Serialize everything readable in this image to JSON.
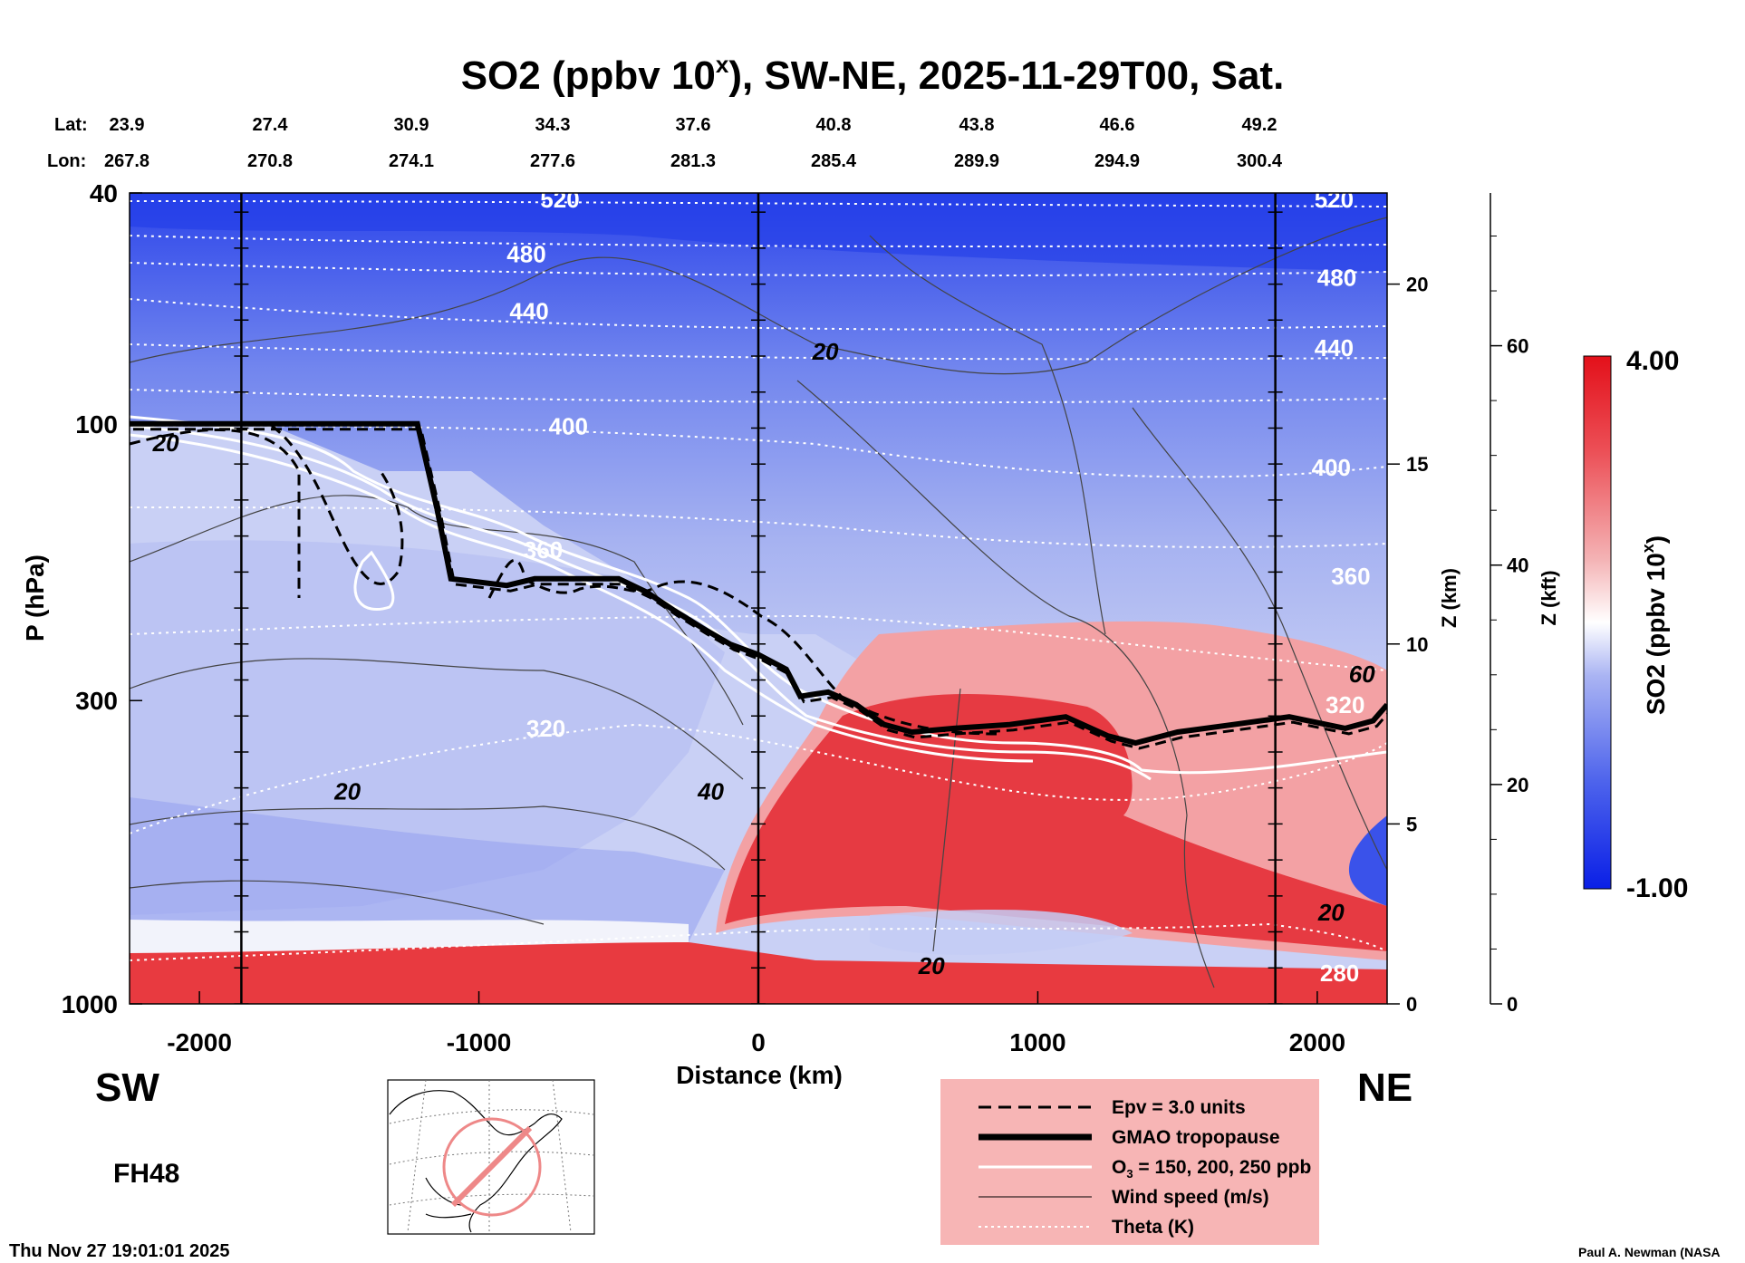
{
  "chart_data": {
    "type": "heatmap",
    "title_main": "SO2 (ppbv 10",
    "title_sup": "x",
    "title_rest": "), SW-NE, 2025-11-29T00, Sat.",
    "lat_label": "Lat:",
    "lon_label": "Lon:",
    "lat_values": [
      "23.9",
      "27.4",
      "30.9",
      "34.3",
      "37.6",
      "40.8",
      "43.8",
      "46.6",
      "49.2"
    ],
    "lon_values": [
      "267.8",
      "270.8",
      "274.1",
      "277.6",
      "281.3",
      "285.4",
      "289.9",
      "294.9",
      "300.4"
    ],
    "xlabel": "Distance (km)",
    "xlim": [
      -2250,
      2250
    ],
    "x_ticks": [
      -2000,
      -1000,
      0,
      1000,
      2000
    ],
    "x_tick_labels": [
      "-2000",
      "-1000",
      "0",
      "1000",
      "2000"
    ],
    "ylabel": "P (hPa)",
    "ylim": [
      1000,
      40
    ],
    "y_ticks": [
      40,
      100,
      300,
      1000
    ],
    "y_tick_labels": [
      "40",
      "100",
      "300",
      "1000"
    ],
    "z_km_label": "Z (km)",
    "z_km_ticks": [
      0,
      5,
      10,
      15,
      20
    ],
    "z_km_tick_labels": [
      "0",
      "5",
      "10",
      "15",
      "20"
    ],
    "z_kft_label": "Z (kft)",
    "z_kft_ticks": [
      0,
      20,
      40,
      60
    ],
    "z_kft_tick_labels": [
      "0",
      "20",
      "40",
      "60"
    ],
    "vertical_markers_km": [
      -1850,
      0,
      1850
    ],
    "colorbar": {
      "label_main": "SO2 (ppbv 10",
      "label_sup": "x",
      "label_rest": ")",
      "max_label": "4.00",
      "min_label": "-1.00",
      "min": -1.0,
      "max": 4.0,
      "colors": [
        "#0a1fe6",
        "#ffffff",
        "#e8101a"
      ]
    },
    "tropopause": {
      "x": [
        -2250,
        -2000,
        -1500,
        -1220,
        -1150,
        -1100,
        -900,
        -800,
        -600,
        -500,
        -400,
        -300,
        -200,
        -100,
        0,
        100,
        150,
        250,
        350,
        450,
        550,
        700,
        900,
        1100,
        1250,
        1350,
        1500,
        1700,
        1900,
        2100,
        2200,
        2250
      ],
      "p": [
        100,
        100,
        100,
        100,
        140,
        185,
        190,
        185,
        185,
        185,
        195,
        210,
        225,
        240,
        250,
        265,
        295,
        290,
        305,
        330,
        340,
        335,
        330,
        320,
        345,
        355,
        340,
        330,
        320,
        335,
        325,
        305
      ]
    },
    "theta_labels": [
      {
        "text": "520",
        "x": -710,
        "p": 41
      },
      {
        "text": "480",
        "x": -830,
        "p": 51
      },
      {
        "text": "440",
        "x": -820,
        "p": 64
      },
      {
        "text": "400",
        "x": -680,
        "p": 101
      },
      {
        "text": "360",
        "x": -770,
        "p": 165
      },
      {
        "text": "320",
        "x": -760,
        "p": 335
      },
      {
        "text": "280",
        "x": 2080,
        "p": 885
      },
      {
        "text": "520",
        "x": 2060,
        "p": 41
      },
      {
        "text": "480",
        "x": 2070,
        "p": 56
      },
      {
        "text": "440",
        "x": 2060,
        "p": 74
      },
      {
        "text": "400",
        "x": 2050,
        "p": 119
      },
      {
        "text": "360",
        "x": 2120,
        "p": 183
      },
      {
        "text": "320",
        "x": 2100,
        "p": 305
      }
    ],
    "wind_labels": [
      {
        "text": "20",
        "x": 240,
        "p": 75
      },
      {
        "text": "20",
        "x": -1470,
        "p": 430
      },
      {
        "text": "40",
        "x": -170,
        "p": 430
      },
      {
        "text": "20",
        "x": 620,
        "p": 860
      },
      {
        "text": "20",
        "x": 2050,
        "p": 695
      },
      {
        "text": "60",
        "x": 2160,
        "p": 270
      },
      {
        "text": "20",
        "x": -2120,
        "p": 108
      }
    ]
  },
  "labels": {
    "sw": "SW",
    "ne": "NE",
    "fh": "FH48",
    "timestamp": "Thu Nov 27 19:01:01 2025",
    "credit": "Paul A. Newman (NASA"
  },
  "legend": {
    "epv": "Epv = 3.0 units",
    "tropopause": "GMAO tropopause",
    "ozone_main": "O",
    "ozone_sub": "3",
    "ozone_rest": " = 150, 200, 250 ppb",
    "wind": "Wind speed (m/s)",
    "theta": "Theta (K)"
  },
  "colors": {
    "legend_bg": "#f7b5b5",
    "map_circle": "#ee8888"
  }
}
